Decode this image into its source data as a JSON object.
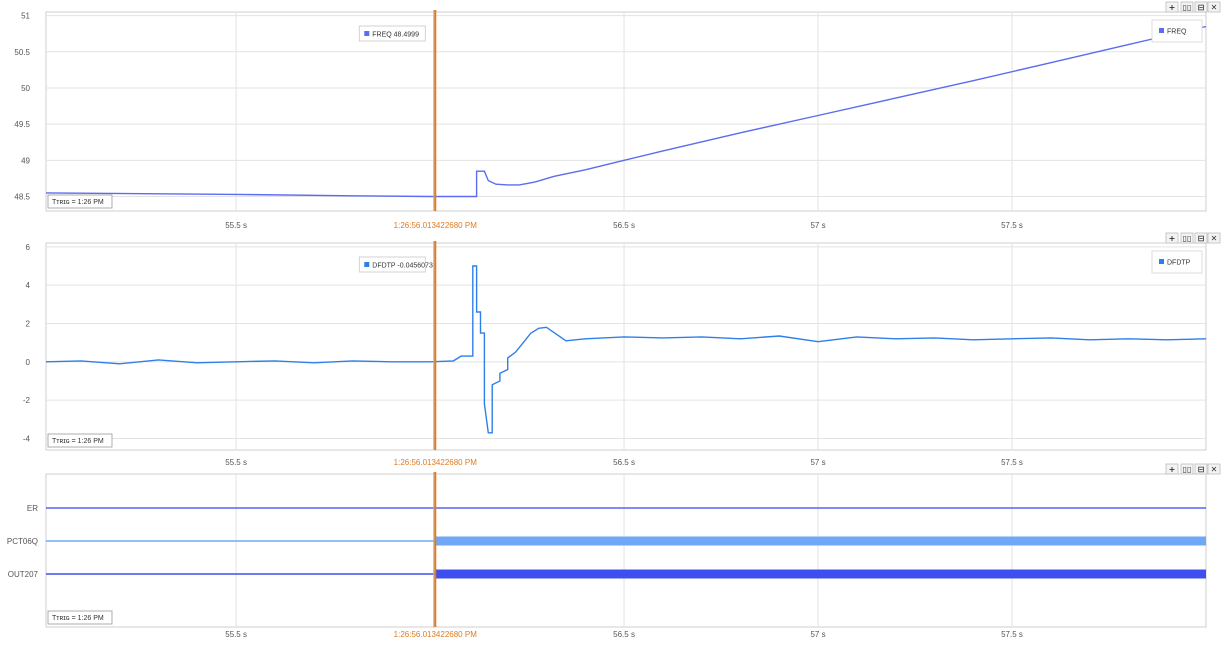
{
  "toolbar": {
    "add_icon": "plus-icon",
    "grid_icon": "columns-icon",
    "split_icon": "split-icon",
    "close_icon": "close-icon",
    "add_label": "+",
    "grid_label": "▯▯",
    "split_label": "⊟",
    "close_label": "✕"
  },
  "cursor": {
    "label": "1:26:56.013422680 PM",
    "time_s": 56.0134,
    "color": "#e07a1f"
  },
  "trigger_label": "Tᴛʀɪɢ = 1:26 PM",
  "colors": {
    "freq": "#5b6cf0",
    "dfdtp": "#2f7fe8",
    "er": "#5566f0",
    "pct06q": "#6ea8f7",
    "out207": "#3d50ef",
    "grid": "#e3e3e3",
    "cursor": "#e07a1f"
  },
  "chart_data": [
    {
      "type": "line",
      "name": "freq-panel",
      "xlim": [
        55.01,
        58.0
      ],
      "ylim": [
        48.3,
        51.05
      ],
      "xticks": [
        55.5,
        56.5,
        57,
        57.5
      ],
      "xtick_labels": [
        "55.5 s",
        "56.5 s",
        "57 s",
        "57.5 s"
      ],
      "yticks": [
        48.5,
        49,
        49.5,
        50,
        50.5,
        51
      ],
      "ytick_labels": [
        "48.5",
        "49",
        "49.5",
        "50",
        "50.5",
        "51"
      ],
      "legend": "top-right",
      "cursor_readout": {
        "name": "FREQ",
        "value": "48.4999"
      },
      "series": [
        {
          "name": "FREQ",
          "x": [
            55.01,
            55.5,
            55.8,
            56.0,
            56.12,
            56.12,
            56.14,
            56.15,
            56.17,
            56.2,
            56.23,
            56.27,
            56.32,
            56.4,
            56.5,
            56.6,
            56.8,
            57.0,
            57.2,
            57.4,
            57.6,
            57.8,
            58.0
          ],
          "y": [
            48.55,
            48.53,
            48.51,
            48.5,
            48.5,
            48.85,
            48.85,
            48.72,
            48.67,
            48.66,
            48.66,
            48.7,
            48.78,
            48.87,
            49.0,
            49.13,
            49.38,
            49.62,
            49.86,
            50.1,
            50.35,
            50.6,
            50.85
          ]
        }
      ]
    },
    {
      "type": "line",
      "name": "dfdtp-panel",
      "xlim": [
        55.01,
        58.0
      ],
      "ylim": [
        -4.6,
        6.2
      ],
      "xticks": [
        55.5,
        56.5,
        57,
        57.5
      ],
      "xtick_labels": [
        "55.5 s",
        "56.5 s",
        "57 s",
        "57.5 s"
      ],
      "yticks": [
        -4,
        -2,
        0,
        2,
        4,
        6
      ],
      "ytick_labels": [
        "-4",
        "-2",
        "0",
        "2",
        "4",
        "6"
      ],
      "legend": "top-right",
      "cursor_readout": {
        "name": "DFDTP",
        "value": "-0.0456073"
      },
      "series": [
        {
          "name": "DFDTP",
          "x": [
            55.01,
            55.1,
            55.2,
            55.3,
            55.4,
            55.5,
            55.6,
            55.7,
            55.8,
            55.9,
            56.0,
            56.06,
            56.08,
            56.08,
            56.11,
            56.11,
            56.12,
            56.12,
            56.13,
            56.13,
            56.14,
            56.14,
            56.15,
            56.16,
            56.16,
            56.18,
            56.18,
            56.2,
            56.2,
            56.22,
            56.24,
            56.26,
            56.28,
            56.3,
            56.35,
            56.4,
            56.5,
            56.6,
            56.7,
            56.8,
            56.9,
            57.0,
            57.1,
            57.2,
            57.3,
            57.4,
            57.5,
            57.6,
            57.7,
            57.8,
            57.9,
            58.0
          ],
          "y": [
            0.0,
            0.05,
            -0.1,
            0.1,
            -0.05,
            0.0,
            0.05,
            -0.05,
            0.05,
            0.0,
            0.0,
            0.05,
            0.3,
            0.3,
            0.3,
            5.0,
            5.0,
            2.6,
            2.6,
            1.5,
            1.5,
            -2.2,
            -3.7,
            -3.7,
            -1.2,
            -1.0,
            -0.6,
            -0.4,
            0.2,
            0.5,
            1.0,
            1.5,
            1.75,
            1.8,
            1.1,
            1.2,
            1.3,
            1.25,
            1.3,
            1.2,
            1.35,
            1.05,
            1.3,
            1.2,
            1.25,
            1.15,
            1.2,
            1.25,
            1.15,
            1.2,
            1.15,
            1.2
          ]
        }
      ]
    },
    {
      "type": "line",
      "name": "digital-panel",
      "xlim": [
        55.01,
        58.0
      ],
      "xticks": [
        55.5,
        56.5,
        57,
        57.5
      ],
      "xtick_labels": [
        "55.5 s",
        "56.5 s",
        "57 s",
        "57.5 s"
      ],
      "series": [
        {
          "name": "ER",
          "change_at": null,
          "after_state": "low"
        },
        {
          "name": "PCT06Q",
          "change_at": 56.0134,
          "after_state": "high"
        },
        {
          "name": "OUT207",
          "change_at": 56.0134,
          "after_state": "high"
        }
      ]
    }
  ]
}
